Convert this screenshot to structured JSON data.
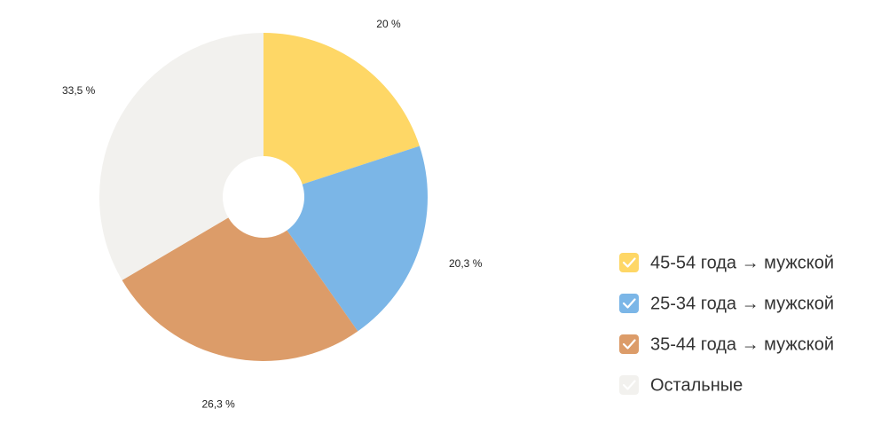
{
  "chart_data": {
    "type": "donut",
    "categories": [
      "45-54 года → мужской",
      "25-34 года → мужской",
      "35-44 года → мужской",
      "Остальные"
    ],
    "values": [
      20,
      20.3,
      26.3,
      33.5
    ],
    "value_labels": [
      "20 %",
      "20,3 %",
      "26,3 %",
      "33,5 %"
    ],
    "colors": [
      "#fed766",
      "#7bb6e7",
      "#dc9c69",
      "#f2f1ee"
    ],
    "legend": "right"
  }
}
